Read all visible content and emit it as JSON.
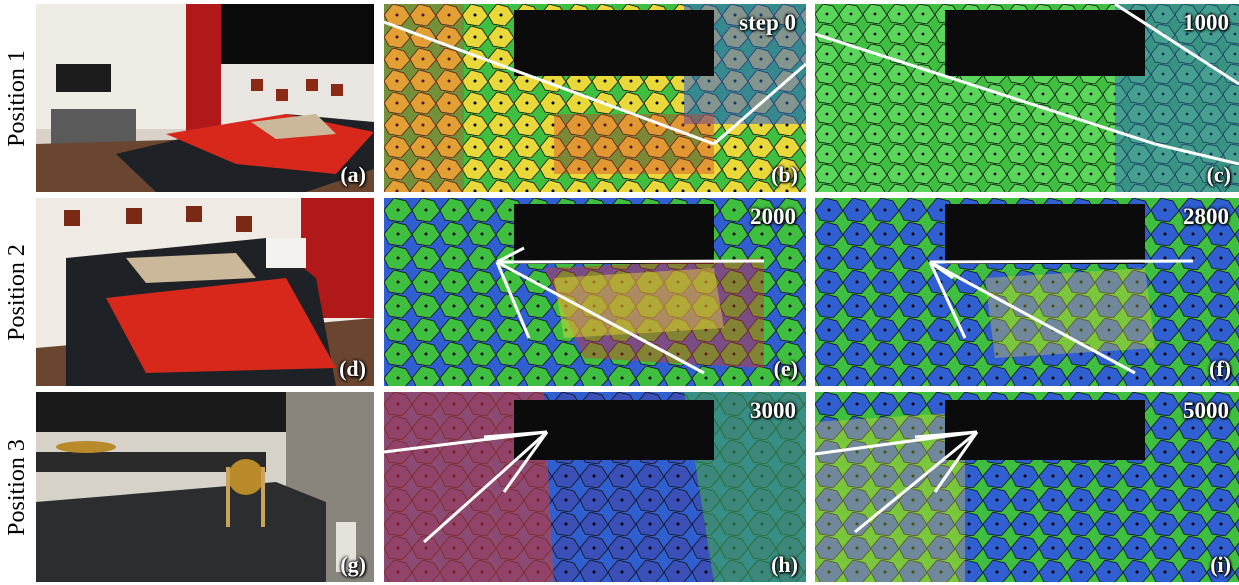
{
  "rows": [
    {
      "label": "Position 1"
    },
    {
      "label": "Position 2"
    },
    {
      "label": "Position 3"
    }
  ],
  "panels": {
    "a": {
      "tag": "(a)"
    },
    "b": {
      "tag": "(b)",
      "step": "step 0"
    },
    "c": {
      "tag": "(c)",
      "step": "1000"
    },
    "d": {
      "tag": "(d)"
    },
    "e": {
      "tag": "(e)",
      "step": "2000"
    },
    "f": {
      "tag": "(f)",
      "step": "2800"
    },
    "g": {
      "tag": "(g)"
    },
    "h": {
      "tag": "(h)",
      "step": "3000"
    },
    "i": {
      "tag": "(i)",
      "step": "5000"
    }
  },
  "colors": {
    "cell_blue": "#2f5fd0",
    "cell_green": "#3fbf3f",
    "cell_yellow": "#e8d83a",
    "cell_red": "#d83a2a",
    "wall_red": "#b0181a",
    "bed_red": "#d8281c",
    "floor_wood": "#6a4630"
  }
}
